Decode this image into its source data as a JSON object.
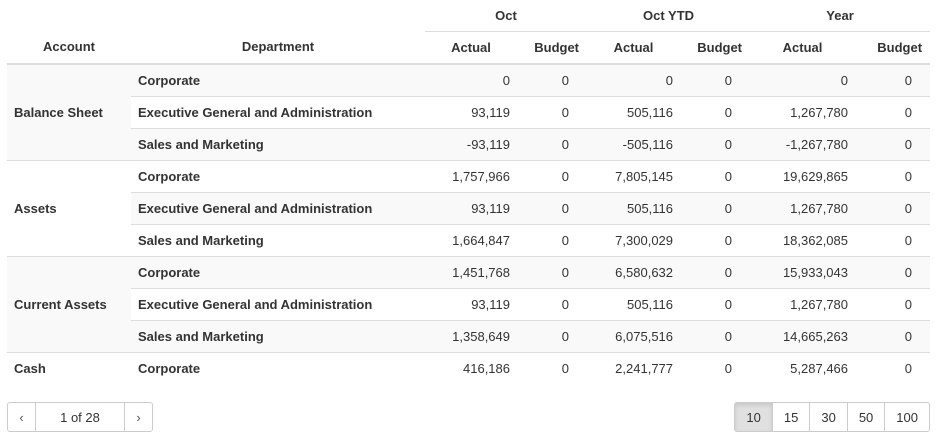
{
  "headers": {
    "account": "Account",
    "department": "Department",
    "groups": [
      "Oct",
      "Oct YTD",
      "Year"
    ],
    "actual": "Actual",
    "budget": "Budget"
  },
  "groups": [
    {
      "account": "Balance Sheet",
      "rows": [
        {
          "department": "Corporate",
          "values": [
            "0",
            "0",
            "0",
            "0",
            "0",
            "0"
          ]
        },
        {
          "department": "Executive General and Administration",
          "values": [
            "93,119",
            "0",
            "505,116",
            "0",
            "1,267,780",
            "0"
          ]
        },
        {
          "department": "Sales and Marketing",
          "values": [
            "-93,119",
            "0",
            "-505,116",
            "0",
            "-1,267,780",
            "0"
          ]
        }
      ]
    },
    {
      "account": "Assets",
      "rows": [
        {
          "department": "Corporate",
          "values": [
            "1,757,966",
            "0",
            "7,805,145",
            "0",
            "19,629,865",
            "0"
          ]
        },
        {
          "department": "Executive General and Administration",
          "values": [
            "93,119",
            "0",
            "505,116",
            "0",
            "1,267,780",
            "0"
          ]
        },
        {
          "department": "Sales and Marketing",
          "values": [
            "1,664,847",
            "0",
            "7,300,029",
            "0",
            "18,362,085",
            "0"
          ]
        }
      ]
    },
    {
      "account": "Current Assets",
      "rows": [
        {
          "department": "Corporate",
          "values": [
            "1,451,768",
            "0",
            "6,580,632",
            "0",
            "15,933,043",
            "0"
          ]
        },
        {
          "department": "Executive General and Administration",
          "values": [
            "93,119",
            "0",
            "505,116",
            "0",
            "1,267,780",
            "0"
          ]
        },
        {
          "department": "Sales and Marketing",
          "values": [
            "1,358,649",
            "0",
            "6,075,516",
            "0",
            "14,665,263",
            "0"
          ]
        }
      ]
    },
    {
      "account": "Cash",
      "rows": [
        {
          "department": "Corporate",
          "values": [
            "416,186",
            "0",
            "2,241,777",
            "0",
            "5,287,466",
            "0"
          ]
        }
      ]
    }
  ],
  "pagination": {
    "prev": "‹",
    "page": "1 of 28",
    "next": "›"
  },
  "page_sizes": {
    "options": [
      "10",
      "15",
      "30",
      "50",
      "100"
    ],
    "selected": "10"
  }
}
